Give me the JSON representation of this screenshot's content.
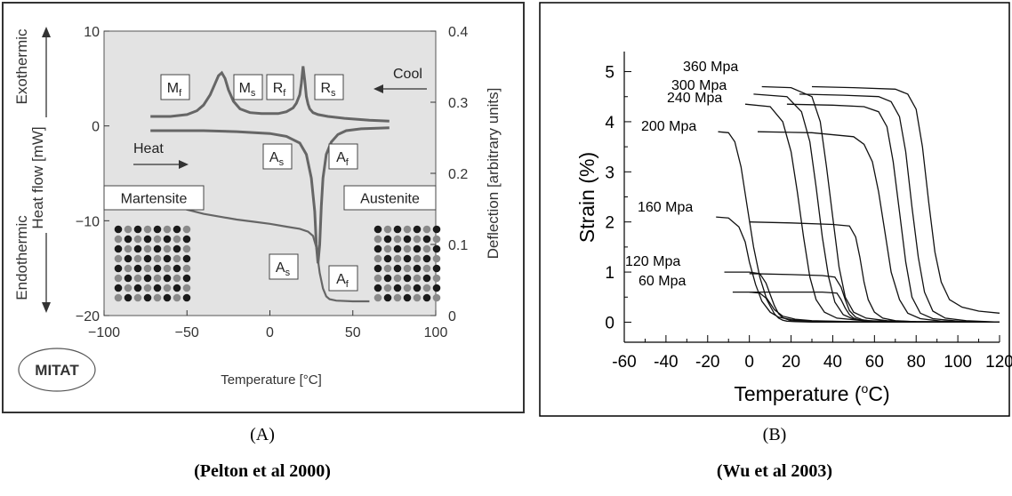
{
  "chart_data": [
    {
      "type": "line",
      "xlabel": "Temperature [°C]",
      "xlim": [
        -100,
        100
      ],
      "x_ticks": [
        "−100",
        "−50",
        "0",
        "50",
        "100"
      ],
      "y_left_label": "Heat flow [mW]",
      "y_left_lim": [
        -20,
        10
      ],
      "y_left_ticks": [
        "10",
        "0",
        "−10",
        "−20"
      ],
      "y_right_label": "Deflection [arbitrary units]",
      "y_right_lim": [
        0,
        0.4
      ],
      "y_right_ticks": [
        "0.4",
        "0.3",
        "0.2",
        "0.1",
        "0"
      ],
      "exothermic_label": "Exothermic",
      "endothermic_label": "Endothermic",
      "cool_label": "Cool",
      "heat_label": "Heat",
      "martensite_label": "Martensite",
      "austenite_label": "Austenite",
      "logo_text": "MITAT",
      "series": [
        {
          "role": "cooling",
          "x": [
            -72,
            -60,
            -50,
            -44,
            -40,
            -36,
            -33,
            -31,
            -29,
            -27,
            -25,
            -22,
            -18,
            -12,
            -5,
            0,
            5,
            10,
            14,
            16,
            18,
            19,
            20,
            21,
            22,
            23,
            24,
            26,
            29,
            35,
            45,
            60,
            72
          ],
          "y": [
            1.0,
            1.0,
            1.2,
            1.6,
            2.2,
            3.3,
            4.5,
            5.3,
            5.6,
            5.0,
            3.8,
            2.6,
            1.8,
            1.4,
            1.3,
            1.3,
            1.3,
            1.5,
            1.9,
            2.4,
            3.3,
            4.5,
            6.3,
            4.8,
            3.1,
            2.3,
            1.8,
            1.4,
            1.2,
            1.0,
            0.8,
            0.6,
            0.5
          ]
        },
        {
          "role": "heating",
          "x": [
            -72,
            -60,
            -40,
            -20,
            0,
            10,
            18,
            22,
            25,
            27,
            28,
            29,
            30,
            31,
            32,
            34,
            37,
            41,
            46,
            55,
            72
          ],
          "y": [
            -0.5,
            -0.5,
            -0.5,
            -0.6,
            -0.8,
            -1.1,
            -1.8,
            -3.0,
            -5.5,
            -9.0,
            -12.5,
            -14.5,
            -12.5,
            -8.5,
            -5.5,
            -3.0,
            -1.7,
            -0.9,
            -0.5,
            -0.3,
            -0.2
          ]
        },
        {
          "role": "deflection",
          "x": [
            -57,
            -50,
            -40,
            -30,
            -20,
            -10,
            0,
            10,
            18,
            23,
            26,
            28,
            30,
            32,
            34,
            36,
            40,
            50,
            60
          ],
          "y": [
            0.155,
            0.149,
            0.143,
            0.139,
            0.135,
            0.132,
            0.129,
            0.125,
            0.122,
            0.118,
            0.112,
            0.096,
            0.06,
            0.038,
            0.027,
            0.023,
            0.021,
            0.02,
            0.02
          ]
        }
      ],
      "labels": {
        "mf": {
          "base": "M",
          "sub": "f"
        },
        "ms": {
          "base": "M",
          "sub": "s"
        },
        "rf": {
          "base": "R",
          "sub": "f"
        },
        "rs": {
          "base": "R",
          "sub": "s"
        },
        "as1": {
          "base": "A",
          "sub": "s"
        },
        "af1": {
          "base": "A",
          "sub": "f"
        },
        "as2": {
          "base": "A",
          "sub": "s"
        },
        "af2": {
          "base": "A",
          "sub": "f"
        }
      }
    },
    {
      "type": "line",
      "xlabel": "Temperature (°C)",
      "xlabel_parts": [
        "Temperature (",
        "o",
        "C)"
      ],
      "ylabel": "Strain (%)",
      "xlim": [
        -60,
        120
      ],
      "ylim": [
        -0.4,
        5.4
      ],
      "x_ticks": [
        -60,
        -40,
        -20,
        0,
        20,
        40,
        60,
        80,
        100,
        120
      ],
      "y_ticks": [
        0,
        1,
        2,
        3,
        4,
        5
      ],
      "series": [
        {
          "name": "60 Mpa",
          "x": [
            -8,
            0,
            5,
            8,
            10,
            12,
            14,
            16,
            18,
            22,
            30,
            50,
            80,
            120
          ],
          "y": [
            0.6,
            0.6,
            0.58,
            0.48,
            0.32,
            0.17,
            0.08,
            0.04,
            0.02,
            0.01,
            0.0,
            0.0,
            0.0,
            0.0
          ]
        },
        {
          "name": "120 Mpa",
          "x": [
            -12,
            0,
            5,
            8,
            10,
            12,
            14,
            16,
            20,
            30,
            60,
            120
          ],
          "y": [
            1.0,
            1.0,
            0.97,
            0.78,
            0.55,
            0.33,
            0.17,
            0.09,
            0.03,
            0.01,
            0.0,
            0.0
          ]
        },
        {
          "name": "160 Mpa",
          "x": [
            -16,
            -10,
            -5,
            -2,
            0,
            3,
            6,
            10,
            14,
            20,
            30,
            50,
            80,
            120
          ],
          "y": [
            2.1,
            2.08,
            1.9,
            1.6,
            1.2,
            0.75,
            0.42,
            0.2,
            0.1,
            0.05,
            0.02,
            0.01,
            0.0,
            0.0
          ]
        },
        {
          "name": "200 Mpa",
          "x": [
            -15,
            -10,
            -7,
            -4,
            -1,
            2,
            5,
            8,
            12,
            16,
            22,
            30,
            50,
            80,
            120
          ],
          "y": [
            3.8,
            3.78,
            3.6,
            3.1,
            2.3,
            1.5,
            0.9,
            0.5,
            0.25,
            0.12,
            0.06,
            0.03,
            0.01,
            0.0,
            0.0
          ]
        },
        {
          "name": "240 Mpa",
          "x": [
            -2,
            10,
            16,
            20,
            23,
            26,
            29,
            32,
            36,
            42,
            55,
            80,
            120
          ],
          "y": [
            4.35,
            4.3,
            4.0,
            3.4,
            2.6,
            1.7,
            0.9,
            0.45,
            0.2,
            0.08,
            0.03,
            0.01,
            0.0
          ]
        },
        {
          "name": "300 Mpa",
          "x": [
            2,
            18,
            25,
            29,
            32,
            35,
            38,
            41,
            45,
            50,
            60,
            80,
            120
          ],
          "y": [
            4.55,
            4.5,
            4.2,
            3.6,
            2.7,
            1.7,
            0.9,
            0.4,
            0.15,
            0.06,
            0.02,
            0.01,
            0.0
          ]
        },
        {
          "name": "360 Mpa",
          "x": [
            6,
            20,
            30,
            34,
            37,
            40,
            43,
            46,
            50,
            56,
            66,
            80,
            120
          ],
          "y": [
            4.7,
            4.68,
            4.5,
            4.0,
            3.1,
            2.1,
            1.1,
            0.5,
            0.2,
            0.08,
            0.03,
            0.01,
            0.0
          ]
        },
        {
          "x": [
            0,
            20,
            35,
            42,
            44,
            46,
            48,
            50,
            53,
            57,
            65,
            80,
            120
          ],
          "y": [
            0.6,
            0.6,
            0.6,
            0.58,
            0.45,
            0.28,
            0.15,
            0.08,
            0.04,
            0.02,
            0.01,
            0.0,
            0.0
          ]
        },
        {
          "x": [
            0,
            20,
            35,
            41,
            44,
            46,
            48,
            51,
            54,
            58,
            66,
            80,
            120
          ],
          "y": [
            0.97,
            0.95,
            0.93,
            0.9,
            0.7,
            0.45,
            0.23,
            0.1,
            0.05,
            0.02,
            0.01,
            0.0,
            0.0
          ]
        },
        {
          "x": [
            0,
            20,
            40,
            48,
            51,
            53,
            55,
            57,
            60,
            64,
            70,
            80,
            120
          ],
          "y": [
            2.0,
            1.98,
            1.95,
            1.92,
            1.7,
            1.3,
            0.8,
            0.45,
            0.2,
            0.08,
            0.03,
            0.01,
            0.0
          ]
        },
        {
          "x": [
            4,
            30,
            50,
            55,
            59,
            62,
            65,
            68,
            72,
            76,
            82,
            92,
            120
          ],
          "y": [
            3.8,
            3.78,
            3.7,
            3.55,
            3.2,
            2.6,
            1.8,
            1.0,
            0.45,
            0.18,
            0.07,
            0.02,
            0.0
          ]
        },
        {
          "x": [
            18,
            40,
            55,
            62,
            66,
            69,
            72,
            75,
            78,
            82,
            88,
            100,
            120
          ],
          "y": [
            4.35,
            4.33,
            4.3,
            4.2,
            3.9,
            3.2,
            2.2,
            1.2,
            0.5,
            0.18,
            0.07,
            0.02,
            0.0
          ]
        },
        {
          "x": [
            24,
            45,
            62,
            68,
            72,
            75,
            78,
            81,
            84,
            88,
            94,
            104,
            120
          ],
          "y": [
            4.55,
            4.53,
            4.5,
            4.4,
            4.1,
            3.4,
            2.3,
            1.3,
            0.6,
            0.22,
            0.08,
            0.03,
            0.0
          ]
        },
        {
          "x": [
            30,
            50,
            70,
            76,
            80,
            83,
            86,
            89,
            92,
            96,
            102,
            110,
            120
          ],
          "y": [
            4.7,
            4.68,
            4.65,
            4.55,
            4.25,
            3.5,
            2.4,
            1.4,
            0.8,
            0.45,
            0.3,
            0.22,
            0.18
          ]
        }
      ]
    }
  ],
  "captions": {
    "a_letter": "(A)",
    "a_source": "(Pelton et al 2000)",
    "b_letter": "(B)",
    "b_source": "(Wu et al 2003)"
  }
}
